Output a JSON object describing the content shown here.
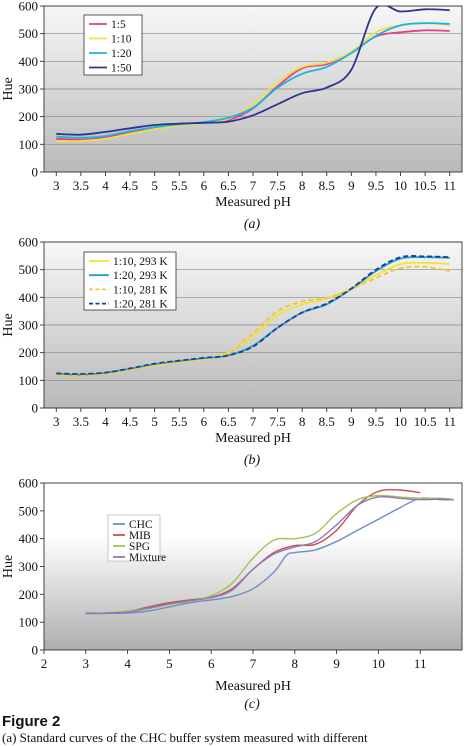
{
  "figure": {
    "title": "Figure 2",
    "caption": "(a) Standard curves of the CHC buffer system measured with different"
  },
  "chart_data": [
    {
      "type": "line",
      "panel_label": "(a)",
      "xlabel": "Measured pH",
      "ylabel": "Hue",
      "xlim": [
        2.75,
        11.25
      ],
      "ylim": [
        0,
        600
      ],
      "xticks": [
        3,
        3.5,
        4,
        4.5,
        5,
        5.5,
        6,
        6.5,
        7,
        7.5,
        8,
        8.5,
        9,
        9.5,
        10,
        10.5,
        11
      ],
      "yticks": [
        0,
        100,
        200,
        300,
        400,
        500,
        600
      ],
      "grid": true,
      "legend": "top-left",
      "colors": [
        "#e83e8c",
        "#f0e040",
        "#1fb3e0",
        "#2a3590"
      ],
      "series": [
        {
          "name": "1:5",
          "x": [
            3,
            3.5,
            4,
            4.5,
            5,
            5.5,
            6,
            6.5,
            7,
            7.5,
            8,
            8.5,
            9,
            9.5,
            10,
            10.5,
            11
          ],
          "values": [
            120,
            117,
            125,
            142,
            158,
            170,
            178,
            188,
            230,
            310,
            375,
            390,
            430,
            490,
            505,
            512,
            510
          ]
        },
        {
          "name": "1:10",
          "x": [
            3,
            3.5,
            4,
            4.5,
            5,
            5.5,
            6,
            6.5,
            7,
            7.5,
            8,
            8.5,
            9,
            9.5,
            10,
            10.5,
            11
          ],
          "values": [
            112,
            112,
            120,
            138,
            155,
            168,
            177,
            192,
            245,
            325,
            380,
            395,
            435,
            505,
            530,
            538,
            532
          ]
        },
        {
          "name": "1:20",
          "x": [
            3,
            3.5,
            4,
            4.5,
            5,
            5.5,
            6,
            6.5,
            7,
            7.5,
            8,
            8.5,
            9,
            9.5,
            10,
            10.5,
            11
          ],
          "values": [
            128,
            124,
            130,
            148,
            162,
            172,
            180,
            196,
            232,
            305,
            355,
            380,
            430,
            492,
            530,
            538,
            535
          ]
        },
        {
          "name": "1:50",
          "x": [
            3,
            3.5,
            4,
            4.5,
            5,
            5.5,
            6,
            6.5,
            7,
            7.5,
            8,
            8.5,
            9,
            9.5,
            10,
            10.5,
            11
          ],
          "values": [
            138,
            135,
            145,
            158,
            170,
            175,
            178,
            182,
            205,
            245,
            285,
            305,
            370,
            592,
            580,
            588,
            585
          ]
        }
      ]
    },
    {
      "type": "line",
      "panel_label": "(b)",
      "xlabel": "Measured pH",
      "ylabel": "Hue",
      "xlim": [
        2.75,
        11.25
      ],
      "ylim": [
        0,
        600
      ],
      "xticks": [
        3,
        3.5,
        4,
        4.5,
        5,
        5.5,
        6,
        6.5,
        7,
        7.5,
        8,
        8.5,
        9,
        9.5,
        10,
        10.5,
        11
      ],
      "yticks": [
        0,
        100,
        200,
        300,
        400,
        500,
        600
      ],
      "grid": true,
      "legend": "top-left",
      "colors": [
        "#f5e330",
        "#1a9fd6",
        "#f3c533",
        "#1c3e8a"
      ],
      "dashed": [
        false,
        false,
        true,
        true
      ],
      "series": [
        {
          "name": "1:10, 293 K",
          "x": [
            3,
            3.5,
            4,
            4.5,
            5,
            5.5,
            6,
            6.5,
            7,
            7.5,
            8,
            8.5,
            9,
            9.5,
            10,
            10.5,
            11
          ],
          "values": [
            120,
            118,
            125,
            140,
            155,
            167,
            178,
            200,
            260,
            335,
            375,
            395,
            432,
            480,
            520,
            525,
            520
          ]
        },
        {
          "name": "1:20, 293 K",
          "x": [
            3,
            3.5,
            4,
            4.5,
            5,
            5.5,
            6,
            6.5,
            7,
            7.5,
            8,
            8.5,
            9,
            9.5,
            10,
            10.5,
            11
          ],
          "values": [
            124,
            120,
            127,
            142,
            158,
            170,
            180,
            190,
            225,
            290,
            345,
            375,
            430,
            495,
            540,
            545,
            543
          ]
        },
        {
          "name": "1:10, 281 K",
          "x": [
            3,
            3.5,
            4,
            4.5,
            5,
            5.5,
            6,
            6.5,
            7,
            7.5,
            8,
            8.5,
            9,
            9.5,
            10,
            10.5,
            11
          ],
          "values": [
            118,
            117,
            124,
            140,
            156,
            168,
            178,
            198,
            270,
            350,
            385,
            398,
            430,
            470,
            505,
            510,
            495
          ]
        },
        {
          "name": "1:20, 281 K",
          "x": [
            3,
            3.5,
            4,
            4.5,
            5,
            5.5,
            6,
            6.5,
            7,
            7.5,
            8,
            8.5,
            9,
            9.5,
            10,
            10.5,
            11
          ],
          "values": [
            125,
            123,
            128,
            143,
            160,
            171,
            181,
            190,
            222,
            290,
            345,
            378,
            432,
            500,
            545,
            548,
            545
          ]
        }
      ]
    },
    {
      "type": "line",
      "panel_label": "(c)",
      "xlabel": "Measured pH",
      "ylabel": "Hue",
      "xlim": [
        2,
        12
      ],
      "ylim": [
        0,
        600
      ],
      "xticks": [
        2,
        3,
        4,
        5,
        6,
        7,
        8,
        9,
        10,
        11
      ],
      "yticks": [
        0,
        100,
        200,
        300,
        400,
        500,
        600
      ],
      "grid": false,
      "legend": "center-left",
      "colors": [
        "#6a8fc8",
        "#c8504e",
        "#a2c257",
        "#8e79b8"
      ],
      "series": [
        {
          "name": "CHC",
          "x": [
            3,
            3.5,
            4,
            4.5,
            5,
            5.5,
            6,
            6.5,
            7,
            7.5,
            7.8,
            8,
            8.5,
            9,
            9.5,
            10,
            10.5,
            11,
            11.5,
            11.8
          ],
          "values": [
            133,
            132,
            133,
            140,
            155,
            170,
            180,
            192,
            220,
            280,
            340,
            350,
            360,
            390,
            430,
            470,
            510,
            545,
            540,
            540
          ]
        },
        {
          "name": "MIB",
          "x": [
            3,
            3.5,
            4,
            4.5,
            5,
            5.5,
            6,
            6.5,
            7,
            7.5,
            8,
            8.5,
            9,
            9.5,
            10,
            10.5,
            11
          ],
          "values": [
            130,
            132,
            138,
            155,
            170,
            180,
            190,
            220,
            290,
            350,
            375,
            380,
            430,
            520,
            570,
            575,
            565
          ]
        },
        {
          "name": "SPG",
          "x": [
            3,
            3.5,
            4,
            4.5,
            5,
            5.5,
            6,
            6.5,
            7,
            7.5,
            8,
            8.5,
            9,
            9.5,
            10,
            10.5,
            11,
            11.5,
            11.8
          ],
          "values": [
            130,
            133,
            140,
            150,
            163,
            175,
            195,
            240,
            330,
            395,
            400,
            420,
            490,
            540,
            555,
            550,
            545,
            545,
            540
          ]
        },
        {
          "name": "Mixture",
          "x": [
            3,
            3.5,
            4,
            4.5,
            5,
            5.5,
            6,
            6.5,
            7,
            7.5,
            8,
            8.5,
            9,
            9.5,
            10,
            10.5,
            11,
            11.5,
            11.8
          ],
          "values": [
            131,
            133,
            136,
            150,
            166,
            177,
            188,
            215,
            290,
            345,
            370,
            390,
            450,
            520,
            550,
            545,
            540,
            542,
            540
          ]
        }
      ]
    }
  ]
}
